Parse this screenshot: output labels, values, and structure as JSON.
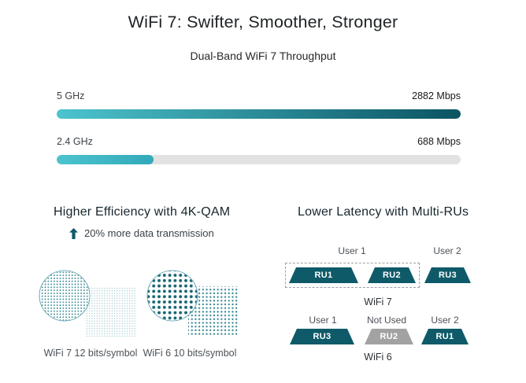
{
  "title": "WiFi 7: Swifter, Smoother, Stronger",
  "throughput": {
    "subtitle": "Dual-Band WiFi 7 Throughput",
    "bars": [
      {
        "label": "5 GHz",
        "value": "2882 Mbps",
        "percent": 100
      },
      {
        "label": "2.4 GHz",
        "value": "688 Mbps",
        "percent": 23.9
      }
    ]
  },
  "chart_data": {
    "type": "bar",
    "title": "Dual-Band WiFi 7 Throughput",
    "categories": [
      "5 GHz",
      "2.4 GHz"
    ],
    "values": [
      2882,
      688
    ],
    "unit": "Mbps",
    "xlabel": "",
    "ylabel": "",
    "orientation": "horizontal",
    "xlim": [
      0,
      2882
    ]
  },
  "efficiency": {
    "heading": "Higher Efficiency with 4K-QAM",
    "benefit": "20% more data transmission",
    "items": [
      {
        "label": "WiFi 7 12 bits/symbol"
      },
      {
        "label": "WiFi 6 10 bits/symbol"
      }
    ]
  },
  "latency": {
    "heading": "Lower Latency with Multi-RUs",
    "wifi7": {
      "caption": "WiFi 7",
      "user1": "User 1",
      "user2": "User 2",
      "ru1": "RU1",
      "ru2": "RU2",
      "ru3": "RU3"
    },
    "wifi6": {
      "caption": "WiFi 6",
      "user1": "User 1",
      "not_used": "Not Used",
      "user2": "User 2",
      "ru1": "RU3",
      "ru2": "RU2",
      "ru3": "RU1"
    }
  },
  "colors": {
    "accent_teal_dark": "#0e5a69",
    "bar_gradient_start": "#4cc4ce",
    "bar_gradient_end": "#0b5362",
    "track_gray": "#e2e2e2",
    "unused_gray": "#a2a2a2"
  }
}
